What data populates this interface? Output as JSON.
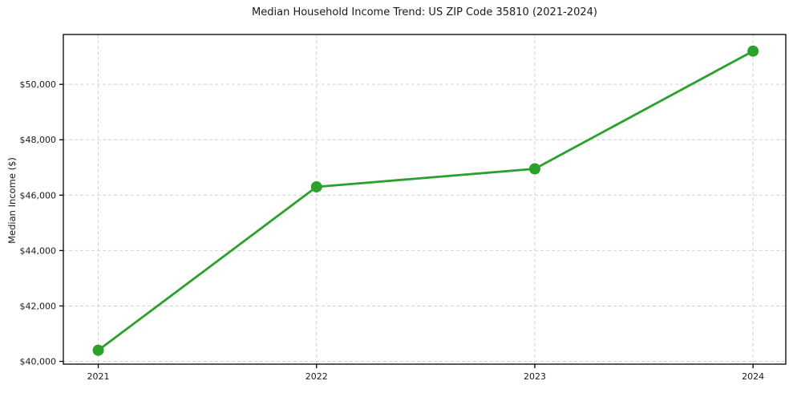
{
  "page": {
    "background": "#ffffff"
  },
  "chart_data": {
    "type": "line",
    "title": "Median Household Income Trend: US ZIP Code 35810 (2021-2024)",
    "ylabel": "Median Income ($)",
    "xlabel": "",
    "x": [
      2021,
      2022,
      2023,
      2024
    ],
    "x_tick_labels": [
      "2021",
      "2022",
      "2023",
      "2024"
    ],
    "values": [
      40400,
      46300,
      46950,
      51200
    ],
    "y_ticks": [
      40000,
      42000,
      44000,
      46000,
      48000,
      50000
    ],
    "y_tick_labels": [
      "$40,000",
      "$42,000",
      "$44,000",
      "$46,000",
      "$48,000",
      "$50,000"
    ],
    "xlim": [
      2020.84,
      2024.15
    ],
    "ylim": [
      39900,
      51800
    ],
    "grid": "dashed",
    "legend": "none",
    "line_color": "#2ca02c",
    "grid_color": "#d2d2d2",
    "spine_color": "#000000",
    "text_color": "#1a1a1a",
    "marker": "circle",
    "marker_radius": 7,
    "line_width": 2.8
  }
}
